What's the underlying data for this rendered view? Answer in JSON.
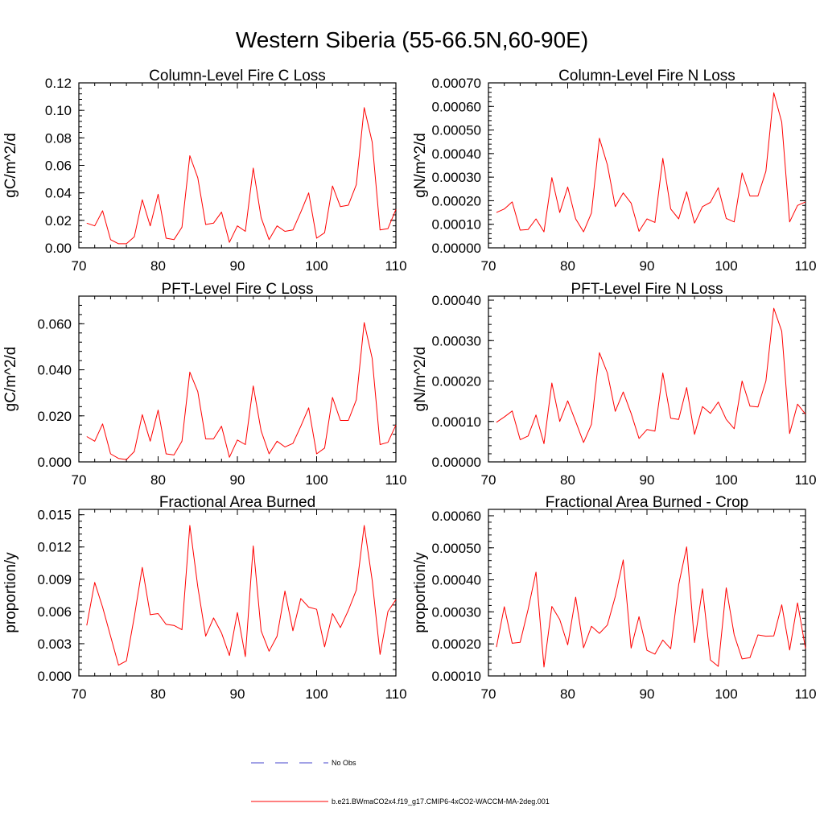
{
  "figure": {
    "title": "Western Siberia (55-66.5N,60-90E)"
  },
  "legend": {
    "entries": [
      {
        "label": "No Obs",
        "color": "#4444cc",
        "dash": "dashed"
      },
      {
        "label": "b.e21.BWmaCO2x4.f19_g17.CMIP6-4xCO2-WACCM-MA-2deg.001",
        "color": "#ff0000",
        "dash": "solid"
      }
    ]
  },
  "chart_data": [
    {
      "type": "line",
      "title": "Column-Level Fire C Loss",
      "ylabel": "gC/m^2/d",
      "xlabel": "",
      "xlim": [
        70,
        110
      ],
      "ylim": [
        0,
        0.12
      ],
      "xticks": [
        "70",
        "80",
        "90",
        "100",
        "110"
      ],
      "yticks": [
        "0.00",
        "0.02",
        "0.04",
        "0.06",
        "0.08",
        "0.10",
        "0.12"
      ],
      "series": [
        {
          "name": "b.e21.BWmaCO2x4.f19_g17.CMIP6-4xCO2-WACCM-MA-2deg.001",
          "color": "#ff0000",
          "x": [
            71,
            72,
            73,
            74,
            75,
            76,
            77,
            78,
            79,
            80,
            81,
            82,
            83,
            84,
            85,
            86,
            87,
            88,
            89,
            90,
            91,
            92,
            93,
            94,
            95,
            96,
            97,
            98,
            99,
            100,
            101,
            102,
            103,
            104,
            105,
            106,
            107,
            108,
            109,
            110
          ],
          "values": [
            0.018,
            0.016,
            0.027,
            0.006,
            0.003,
            0.003,
            0.008,
            0.035,
            0.016,
            0.039,
            0.007,
            0.006,
            0.015,
            0.067,
            0.051,
            0.017,
            0.018,
            0.026,
            0.004,
            0.016,
            0.012,
            0.058,
            0.022,
            0.006,
            0.016,
            0.012,
            0.013,
            0.026,
            0.04,
            0.007,
            0.011,
            0.045,
            0.03,
            0.031,
            0.046,
            0.102,
            0.077,
            0.013,
            0.014,
            0.028
          ]
        }
      ]
    },
    {
      "type": "line",
      "title": "Column-Level Fire N Loss",
      "ylabel": "gN/m^2/d",
      "xlabel": "",
      "xlim": [
        70,
        110
      ],
      "ylim": [
        0,
        0.0007
      ],
      "xticks": [
        "70",
        "80",
        "90",
        "100",
        "110"
      ],
      "yticks": [
        "0.00000",
        "0.00010",
        "0.00020",
        "0.00030",
        "0.00040",
        "0.00050",
        "0.00060",
        "0.00070"
      ],
      "series": [
        {
          "name": "b.e21.BWmaCO2x4.f19_g17.CMIP6-4xCO2-WACCM-MA-2deg.001",
          "color": "#ff0000",
          "x": [
            71,
            72,
            73,
            74,
            75,
            76,
            77,
            78,
            79,
            80,
            81,
            82,
            83,
            84,
            85,
            86,
            87,
            88,
            89,
            90,
            91,
            92,
            93,
            94,
            95,
            96,
            97,
            98,
            99,
            100,
            101,
            102,
            103,
            104,
            105,
            106,
            107,
            108,
            109,
            110
          ],
          "values": [
            0.00015,
            0.000165,
            0.000195,
            7.5e-05,
            7.8e-05,
            0.000123,
            6.8e-05,
            0.000298,
            0.00015,
            0.000258,
            0.000123,
            6.8e-05,
            0.000148,
            0.000465,
            0.000352,
            0.000175,
            0.000233,
            0.00019,
            7e-05,
            0.000123,
            0.000108,
            0.00038,
            0.000165,
            0.000123,
            0.000238,
            0.000105,
            0.000175,
            0.000193,
            0.000255,
            0.000125,
            0.00011,
            0.000318,
            0.00022,
            0.00022,
            0.000325,
            0.000658,
            0.000533,
            0.00011,
            0.00018,
            0.000195
          ]
        }
      ]
    },
    {
      "type": "line",
      "title": "PFT-Level Fire C Loss",
      "ylabel": "gC/m^2/d",
      "xlabel": "",
      "xlim": [
        70,
        110
      ],
      "ylim": [
        0,
        0.072
      ],
      "xticks": [
        "70",
        "80",
        "90",
        "100",
        "110"
      ],
      "yticks": [
        "0.000",
        "0.020",
        "0.040",
        "0.060"
      ],
      "series": [
        {
          "name": "b.e21.BWmaCO2x4.f19_g17.CMIP6-4xCO2-WACCM-MA-2deg.001",
          "color": "#ff0000",
          "x": [
            71,
            72,
            73,
            74,
            75,
            76,
            77,
            78,
            79,
            80,
            81,
            82,
            83,
            84,
            85,
            86,
            87,
            88,
            89,
            90,
            91,
            92,
            93,
            94,
            95,
            96,
            97,
            98,
            99,
            100,
            101,
            102,
            103,
            104,
            105,
            106,
            107,
            108,
            109,
            110
          ],
          "values": [
            0.011,
            0.009,
            0.0165,
            0.0035,
            0.0015,
            0.001,
            0.0045,
            0.0205,
            0.009,
            0.0225,
            0.0035,
            0.003,
            0.009,
            0.039,
            0.0305,
            0.01,
            0.01,
            0.0155,
            0.002,
            0.0095,
            0.0075,
            0.033,
            0.0135,
            0.0035,
            0.009,
            0.0065,
            0.008,
            0.0155,
            0.0235,
            0.0035,
            0.006,
            0.028,
            0.018,
            0.018,
            0.027,
            0.0605,
            0.045,
            0.0075,
            0.0085,
            0.016
          ]
        }
      ]
    },
    {
      "type": "line",
      "title": "PFT-Level Fire N Loss",
      "ylabel": "gN/m^2/d",
      "xlabel": "",
      "xlim": [
        70,
        110
      ],
      "ylim": [
        0,
        0.00041
      ],
      "xticks": [
        "70",
        "80",
        "90",
        "100",
        "110"
      ],
      "yticks": [
        "0.00000",
        "0.00010",
        "0.00020",
        "0.00030",
        "0.00040"
      ],
      "series": [
        {
          "name": "b.e21.BWmaCO2x4.f19_g17.CMIP6-4xCO2-WACCM-MA-2deg.001",
          "color": "#ff0000",
          "x": [
            71,
            72,
            73,
            74,
            75,
            76,
            77,
            78,
            79,
            80,
            81,
            82,
            83,
            84,
            85,
            86,
            87,
            88,
            89,
            90,
            91,
            92,
            93,
            94,
            95,
            96,
            97,
            98,
            99,
            100,
            101,
            102,
            103,
            104,
            105,
            106,
            107,
            108,
            109,
            110
          ],
          "values": [
            9.8e-05,
            0.000111,
            0.000126,
            5.5e-05,
            6.4e-05,
            0.000116,
            4.5e-05,
            0.000195,
            0.0001,
            0.000151,
            0.0001,
            4.8e-05,
            9.3e-05,
            0.00027,
            0.00022,
            0.000125,
            0.000173,
            0.00012,
            5.8e-05,
            8e-05,
            7.6e-05,
            0.00022,
            0.000108,
            0.000105,
            0.000184,
            6.8e-05,
            0.000137,
            0.00012,
            0.000148,
            0.000105,
            8.2e-05,
            0.0002,
            0.000138,
            0.000136,
            0.0002,
            0.00038,
            0.000323,
            7e-05,
            0.000143,
            0.000118
          ]
        }
      ]
    },
    {
      "type": "line",
      "title": "Fractional Area Burned",
      "ylabel": "proportion/y",
      "xlabel": "",
      "xlim": [
        70,
        110
      ],
      "ylim": [
        0,
        0.0155
      ],
      "xticks": [
        "70",
        "80",
        "90",
        "100",
        "110"
      ],
      "yticks": [
        "0.000",
        "0.003",
        "0.006",
        "0.009",
        "0.012",
        "0.015"
      ],
      "series": [
        {
          "name": "b.e21.BWmaCO2x4.f19_g17.CMIP6-4xCO2-WACCM-MA-2deg.001",
          "color": "#ff0000",
          "x": [
            71,
            72,
            73,
            74,
            75,
            76,
            77,
            78,
            79,
            80,
            81,
            82,
            83,
            84,
            85,
            86,
            87,
            88,
            89,
            90,
            91,
            92,
            93,
            94,
            95,
            96,
            97,
            98,
            99,
            100,
            101,
            102,
            103,
            104,
            105,
            106,
            107,
            108,
            109,
            110
          ],
          "values": [
            0.0047,
            0.0087,
            0.0064,
            0.0037,
            0.001,
            0.0014,
            0.0055,
            0.0101,
            0.0057,
            0.0058,
            0.0048,
            0.0047,
            0.0043,
            0.014,
            0.0083,
            0.0037,
            0.0054,
            0.004,
            0.0019,
            0.0059,
            0.0018,
            0.0121,
            0.0042,
            0.0023,
            0.0037,
            0.0079,
            0.0042,
            0.0072,
            0.0064,
            0.0062,
            0.0027,
            0.0058,
            0.0045,
            0.0061,
            0.008,
            0.014,
            0.0089,
            0.002,
            0.006,
            0.0071
          ]
        }
      ]
    },
    {
      "type": "line",
      "title": "Fractional Area Burned - Crop",
      "ylabel": "proportion/y",
      "xlabel": "",
      "xlim": [
        70,
        110
      ],
      "ylim": [
        0.0001,
        0.00062
      ],
      "xticks": [
        "70",
        "80",
        "90",
        "100",
        "110"
      ],
      "yticks": [
        "0.00010",
        "0.00020",
        "0.00030",
        "0.00040",
        "0.00050",
        "0.00060"
      ],
      "series": [
        {
          "name": "b.e21.BWmaCO2x4.f19_g17.CMIP6-4xCO2-WACCM-MA-2deg.001",
          "color": "#ff0000",
          "x": [
            71,
            72,
            73,
            74,
            75,
            76,
            77,
            78,
            79,
            80,
            81,
            82,
            83,
            84,
            85,
            86,
            87,
            88,
            89,
            90,
            91,
            92,
            93,
            94,
            95,
            96,
            97,
            98,
            99,
            100,
            101,
            102,
            103,
            104,
            105,
            106,
            107,
            108,
            109,
            110
          ],
          "values": [
            0.00019,
            0.000316,
            0.000202,
            0.000205,
            0.000308,
            0.000424,
            0.000128,
            0.000317,
            0.000276,
            0.000197,
            0.000346,
            0.000188,
            0.000255,
            0.000233,
            0.000259,
            0.000348,
            0.000462,
            0.000187,
            0.000285,
            0.00018,
            0.000168,
            0.000212,
            0.000185,
            0.000385,
            0.000503,
            0.000204,
            0.000372,
            0.00015,
            0.00013,
            0.000375,
            0.000228,
            0.000153,
            0.000157,
            0.000228,
            0.000224,
            0.000225,
            0.000322,
            0.000181,
            0.000328,
            0.000186
          ]
        }
      ]
    }
  ]
}
